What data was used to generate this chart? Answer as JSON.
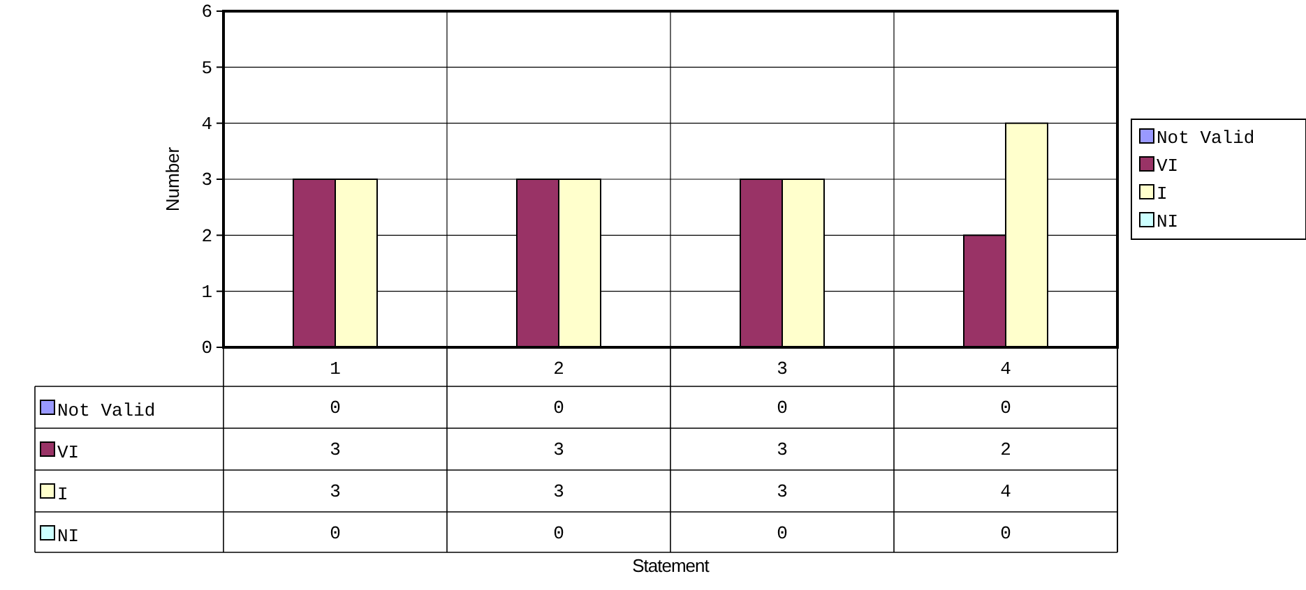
{
  "chart_data": {
    "type": "bar",
    "annotations": [
      "Statement"
    ],
    "ylabel": "Number",
    "categories": [
      "1",
      "2",
      "3",
      "4"
    ],
    "series": [
      {
        "name": "Not Valid",
        "color": "#9999ff",
        "values": [
          0,
          0,
          0,
          0
        ]
      },
      {
        "name": "VI",
        "color": "#993366",
        "values": [
          3,
          3,
          3,
          2
        ]
      },
      {
        "name": "I",
        "color": "#ffffcc",
        "values": [
          3,
          3,
          3,
          4
        ]
      },
      {
        "name": "NI",
        "color": "#ccffff",
        "values": [
          0,
          0,
          0,
          0
        ]
      }
    ],
    "ylim": [
      0,
      6
    ],
    "yticks": [
      0,
      1,
      2,
      3,
      4,
      5,
      6
    ],
    "grid": true,
    "legend": "right",
    "data_labels": true
  }
}
